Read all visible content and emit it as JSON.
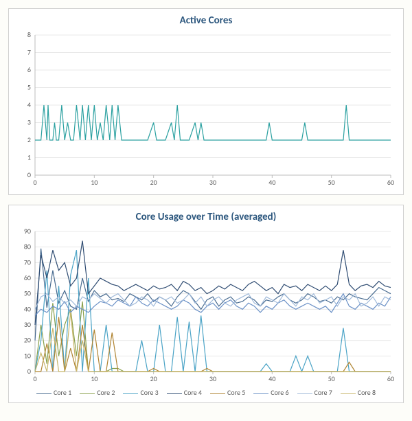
{
  "chart1": {
    "type": "line",
    "title": "Active Cores",
    "title_color": "#2b567d",
    "title_fontsize": 15,
    "background_color": "#ffffff",
    "border_color": "#cfcfcf",
    "grid_color": "#e8e8e8",
    "axis_color": "#bdbdbd",
    "tick_fontsize": 10,
    "tick_color": "#5a5a5a",
    "xlim": [
      0,
      60
    ],
    "xtick_step": 10,
    "ylim": [
      0,
      8
    ],
    "ytick_step": 1,
    "line_color": "#2aa0a0",
    "line_width": 1.2,
    "x": [
      0,
      1,
      1.5,
      2,
      2.2,
      2.5,
      3,
      3.3,
      3.6,
      4,
      4.5,
      5,
      5.5,
      6,
      6.5,
      7,
      7.3,
      7.6,
      8,
      8.5,
      9,
      9.5,
      10,
      10.5,
      11,
      11.5,
      12,
      12.3,
      12.6,
      13,
      13.5,
      14,
      14.3,
      14.6,
      15,
      16,
      17,
      18,
      19,
      20,
      20.5,
      21,
      22,
      23,
      23.5,
      24,
      24.5,
      25,
      26,
      27,
      27.5,
      28,
      28.5,
      29,
      30,
      33,
      37,
      39,
      39.5,
      40,
      40.5,
      43,
      45,
      45.5,
      46,
      46.5,
      50,
      52,
      52.5,
      53,
      53.5,
      55,
      60
    ],
    "y": [
      2,
      2,
      4,
      2,
      4,
      2,
      2,
      3,
      2,
      2,
      4,
      2,
      3,
      2,
      2,
      4,
      3,
      2,
      4,
      2,
      4,
      2,
      4,
      2,
      3,
      2,
      4,
      3,
      2,
      4,
      2,
      4,
      3,
      2,
      2,
      2,
      2,
      2,
      2,
      3,
      2,
      2,
      2,
      3,
      2,
      4,
      2,
      2,
      2,
      3,
      2,
      3,
      2,
      2,
      2,
      2,
      2,
      2,
      3,
      2,
      2,
      2,
      2,
      3,
      2,
      2,
      2,
      2,
      4,
      2,
      2,
      2,
      2
    ]
  },
  "chart2": {
    "type": "line",
    "title": "Core Usage over Time (averaged)",
    "title_color": "#2b567d",
    "title_fontsize": 15,
    "background_color": "#ffffff",
    "border_color": "#cfcfcf",
    "grid_color": "#e8e8e8",
    "axis_color": "#bdbdbd",
    "tick_fontsize": 10,
    "tick_color": "#5a5a5a",
    "xlim": [
      0,
      60
    ],
    "xtick_step": 10,
    "ylim": [
      0,
      90
    ],
    "ytick_step": 10,
    "line_width": 1.2,
    "x_common": [
      0,
      1,
      2,
      3,
      4,
      5,
      6,
      7,
      8,
      9,
      10,
      11,
      12,
      13,
      14,
      15,
      16,
      17,
      18,
      19,
      20,
      21,
      22,
      23,
      24,
      25,
      26,
      27,
      28,
      29,
      30,
      31,
      32,
      33,
      34,
      35,
      36,
      37,
      38,
      39,
      40,
      41,
      42,
      43,
      44,
      45,
      46,
      47,
      48,
      49,
      50,
      51,
      52,
      53,
      54,
      55,
      56,
      57,
      58,
      59,
      60
    ],
    "series": [
      {
        "name": "Core 1",
        "color": "#476a8f",
        "values": [
          20,
          79,
          41,
          65,
          44,
          52,
          42,
          40,
          60,
          45,
          52,
          48,
          50,
          46,
          47,
          45,
          50,
          48,
          46,
          50,
          45,
          48,
          46,
          42,
          48,
          52,
          50,
          45,
          40,
          46,
          48,
          42,
          46,
          48,
          44,
          45,
          48,
          46,
          42,
          46,
          45,
          48,
          50,
          46,
          44,
          46,
          50,
          48,
          45,
          46,
          44,
          48,
          46,
          50,
          48,
          47,
          46,
          50,
          54,
          52,
          50
        ]
      },
      {
        "name": "Core 2",
        "color": "#8aa04c",
        "values": [
          0,
          30,
          5,
          44,
          10,
          30,
          40,
          10,
          45,
          0,
          0,
          0,
          0,
          2,
          2,
          0,
          0,
          0,
          0,
          0,
          0,
          0,
          0,
          0,
          0,
          0,
          0,
          0,
          0,
          0,
          0,
          0,
          0,
          0,
          0,
          0,
          0,
          0,
          0,
          0,
          0,
          0,
          0,
          0,
          0,
          0,
          0,
          0,
          0,
          0,
          0,
          0,
          0,
          0,
          0,
          0,
          0,
          0,
          0,
          0,
          0
        ]
      },
      {
        "name": "Core 3",
        "color": "#4aa3c6",
        "values": [
          0,
          20,
          65,
          0,
          55,
          0,
          62,
          78,
          0,
          60,
          0,
          0,
          30,
          0,
          0,
          0,
          0,
          0,
          20,
          0,
          0,
          30,
          0,
          0,
          35,
          0,
          32,
          0,
          36,
          0,
          0,
          0,
          0,
          0,
          0,
          0,
          0,
          0,
          0,
          5,
          0,
          0,
          0,
          0,
          10,
          0,
          10,
          0,
          0,
          0,
          0,
          0,
          28,
          0,
          0,
          0,
          0,
          0,
          0,
          0,
          0
        ]
      },
      {
        "name": "Core 4",
        "color": "#2f4c72",
        "values": [
          30,
          75,
          60,
          78,
          65,
          70,
          55,
          60,
          84,
          50,
          55,
          60,
          58,
          56,
          55,
          52,
          54,
          56,
          54,
          52,
          55,
          53,
          54,
          56,
          52,
          58,
          56,
          52,
          54,
          50,
          52,
          55,
          53,
          56,
          54,
          52,
          56,
          58,
          55,
          52,
          54,
          50,
          56,
          54,
          55,
          52,
          56,
          54,
          52,
          55,
          52,
          56,
          78,
          56,
          52,
          55,
          56,
          54,
          58,
          55,
          54
        ]
      },
      {
        "name": "Core 5",
        "color": "#b08432",
        "values": [
          0,
          0,
          18,
          0,
          35,
          0,
          15,
          0,
          30,
          0,
          27,
          0,
          0,
          25,
          0,
          0,
          0,
          0,
          0,
          0,
          2,
          0,
          0,
          0,
          0,
          0,
          0,
          0,
          0,
          2,
          0,
          0,
          0,
          0,
          0,
          0,
          0,
          0,
          0,
          0,
          0,
          0,
          0,
          0,
          0,
          0,
          0,
          0,
          0,
          0,
          0,
          0,
          0,
          6,
          0,
          0,
          0,
          0,
          0,
          0,
          0
        ]
      },
      {
        "name": "Core 6",
        "color": "#6a90c6",
        "values": [
          36,
          40,
          38,
          42,
          40,
          45,
          38,
          42,
          40,
          38,
          42,
          45,
          44,
          42,
          46,
          44,
          42,
          48,
          44,
          42,
          46,
          44,
          42,
          40,
          42,
          46,
          44,
          40,
          38,
          42,
          44,
          40,
          44,
          46,
          42,
          40,
          44,
          42,
          38,
          42,
          40,
          44,
          46,
          42,
          40,
          42,
          44,
          42,
          40,
          42,
          38,
          44,
          50,
          42,
          40,
          44,
          42,
          40,
          44,
          42,
          48
        ]
      },
      {
        "name": "Core 7",
        "color": "#9fb9d9",
        "values": [
          40,
          48,
          50,
          45,
          48,
          44,
          46,
          42,
          48,
          46,
          50,
          47,
          44,
          48,
          50,
          46,
          42,
          44,
          48,
          46,
          42,
          48,
          46,
          48,
          44,
          46,
          50,
          44,
          48,
          42,
          46,
          48,
          44,
          42,
          46,
          48,
          50,
          44,
          42,
          48,
          46,
          44,
          50,
          46,
          42,
          48,
          46,
          50,
          44,
          46,
          48,
          42,
          48,
          46,
          50,
          42,
          44,
          48,
          42,
          48,
          46
        ]
      },
      {
        "name": "Core 8",
        "color": "#c8b66a",
        "values": [
          0,
          12,
          0,
          28,
          0,
          0,
          38,
          0,
          20,
          0,
          0,
          0,
          0,
          0,
          0,
          0,
          0,
          0,
          0,
          0,
          0,
          0,
          0,
          0,
          0,
          0,
          0,
          0,
          0,
          0,
          0,
          0,
          0,
          0,
          0,
          0,
          0,
          0,
          0,
          0,
          0,
          0,
          0,
          0,
          0,
          0,
          0,
          0,
          0,
          0,
          0,
          0,
          0,
          0,
          0,
          0,
          0,
          0,
          0,
          0,
          0
        ]
      }
    ],
    "legend_labels": [
      "Core 1",
      "Core 2",
      "Core 3",
      "Core 4",
      "Core 5",
      "Core 6",
      "Core 7",
      "Core 8"
    ]
  }
}
